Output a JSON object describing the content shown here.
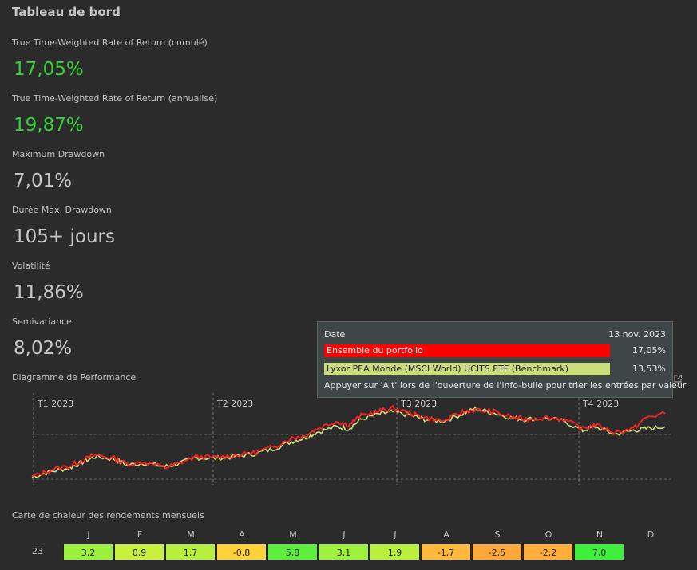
{
  "dashboard": {
    "title": "Tableau de bord",
    "metrics": [
      {
        "label": "True Time-Weighted Rate of Return (cumulé)",
        "value": "17,05%",
        "color": "#36d03a"
      },
      {
        "label": "True Time-Weighted Rate of Return (annualisé)",
        "value": "19,87%",
        "color": "#36d03a"
      },
      {
        "label": "Maximum Drawdown",
        "value": "7,01%"
      },
      {
        "label": "Durée Max. Drawdown",
        "value": "105+ jours"
      },
      {
        "label": "Volatilité",
        "value": "11,86%"
      },
      {
        "label": "Semivariance",
        "value": "8,02%"
      }
    ]
  },
  "performance_chart": {
    "label": "Diagramme de Performance",
    "quarters": [
      "T1 2023",
      "T2 2023",
      "T3 2023",
      "T4 2023"
    ]
  },
  "tooltip": {
    "date_label": "Date",
    "date_value": "13 nov. 2023",
    "rows": [
      {
        "name": "Ensemble du portfolio",
        "value": "17,05%",
        "color": "#ff0000"
      },
      {
        "name": "Lyxor PEA Monde (MSCI World) UCITS ETF (Benchmark)",
        "value": "13,53%",
        "color": "#cbdc7c"
      }
    ],
    "hint": "Appuyer sur 'Alt' lors de l'ouverture de l'info-bulle pour trier les entrées par valeur"
  },
  "heatmap": {
    "label": "Carte de chaleur des rendements mensuels",
    "months": [
      "J",
      "F",
      "M",
      "A",
      "M",
      "J",
      "J",
      "A",
      "S",
      "O",
      "N",
      "D"
    ],
    "year": "23",
    "values": [
      "3,2",
      "0,9",
      "1,7",
      "-0,8",
      "5,8",
      "3,1",
      "1,9",
      "-1,7",
      "-2,5",
      "-2,2",
      "7,0",
      ""
    ],
    "colors": [
      "#9bf03c",
      "#c9f03c",
      "#b7f03c",
      "#ffd23a",
      "#5cf03c",
      "#9df03c",
      "#b9f03c",
      "#ffb83a",
      "#ffa83a",
      "#ffae3a",
      "#3cf03c",
      ""
    ]
  },
  "chart_data": {
    "type": "line",
    "x_ticks": [
      "T1 2023",
      "T2 2023",
      "T3 2023",
      "T4 2023"
    ],
    "series": [
      {
        "name": "Ensemble du portfolio",
        "color": "#ff2a2a",
        "final_value": 17.05
      },
      {
        "name": "Lyxor PEA Monde (MSCI World) UCITS ETF (Benchmark)",
        "color": "#cbdc7c",
        "final_value": 13.53
      }
    ],
    "grid": true
  }
}
